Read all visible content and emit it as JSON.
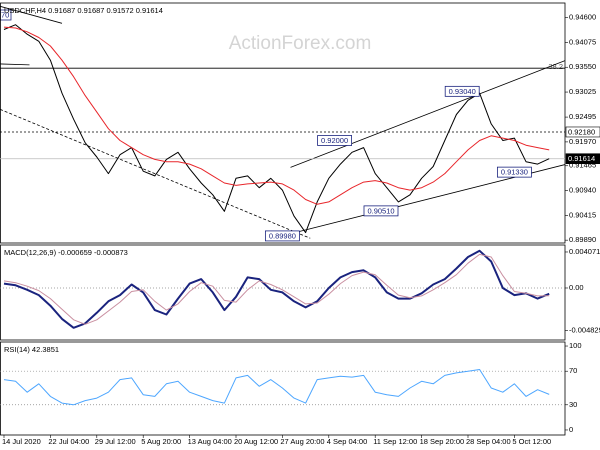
{
  "watermark": "ActionForex.com",
  "chart_data": [
    {
      "type": "line",
      "title": "USDCHF,H4  0.91687 0.91687 0.91572 0.91614",
      "notes": [
        "70",
        "38.2"
      ],
      "ylim": [
        0.8983,
        0.9491
      ],
      "yticks": [
        {
          "value": 0.946,
          "label": "0.94600"
        },
        {
          "value": 0.94075,
          "label": "0.94075"
        },
        {
          "value": 0.9355,
          "label": "0.93550"
        },
        {
          "value": 0.93025,
          "label": "0.93025"
        },
        {
          "value": 0.92495,
          "label": "0.92495"
        },
        {
          "value": 0.9197,
          "label": "0.91970"
        },
        {
          "value": 0.91465,
          "label": "0.91465"
        },
        {
          "value": 0.9094,
          "label": "0.90940"
        },
        {
          "value": 0.90415,
          "label": "0.90415"
        },
        {
          "value": 0.8989,
          "label": "0.89890"
        }
      ],
      "series": [
        {
          "color": "#000000",
          "values": [
            0.9435,
            0.9445,
            0.9425,
            0.941,
            0.937,
            0.93,
            0.9245,
            0.9195,
            0.9165,
            0.913,
            0.917,
            0.9185,
            0.9135,
            0.9125,
            0.916,
            0.9175,
            0.914,
            0.911,
            0.9085,
            0.905,
            0.912,
            0.9125,
            0.91,
            0.912,
            0.9095,
            0.904,
            0.9005,
            0.907,
            0.912,
            0.915,
            0.9175,
            0.9185,
            0.913,
            0.91,
            0.907,
            0.9085,
            0.912,
            0.9145,
            0.92,
            0.9255,
            0.9285,
            0.93,
            0.9235,
            0.92,
            0.9205,
            0.9155,
            0.915,
            0.91614
          ]
        },
        {
          "color": "#e8262b",
          "values": [
            0.944,
            0.9438,
            0.943,
            0.9418,
            0.94,
            0.937,
            0.9335,
            0.9295,
            0.926,
            0.9225,
            0.92,
            0.9185,
            0.917,
            0.916,
            0.9155,
            0.9155,
            0.915,
            0.914,
            0.9125,
            0.911,
            0.9105,
            0.9108,
            0.911,
            0.9112,
            0.9108,
            0.9095,
            0.9075,
            0.9065,
            0.907,
            0.9085,
            0.91,
            0.9112,
            0.9115,
            0.911,
            0.91,
            0.9095,
            0.91,
            0.9112,
            0.913,
            0.9155,
            0.918,
            0.92,
            0.921,
            0.9205,
            0.92,
            0.919,
            0.9185,
            0.918
          ]
        }
      ],
      "levels": [
        {
          "value": 0.9353,
          "style": "solid"
        },
        {
          "value": 0.9218,
          "label": "0.92180",
          "style": "dotted"
        },
        {
          "value": 0.91614,
          "label": "0.91614",
          "style": "current"
        }
      ],
      "trendlines": [
        {
          "x": [
            24.7,
            48.4
          ],
          "y": [
            0.9143,
            0.9369
          ],
          "style": "solid"
        },
        {
          "x": [
            22.5,
            48.4
          ],
          "y": [
            0.8989,
            0.9149
          ],
          "style": "solid"
        },
        {
          "x": [
            -0.34,
            26.4
          ],
          "y": [
            0.9266,
            0.8993
          ],
          "style": "dashed"
        },
        {
          "x": [
            -0.34,
            5.0
          ],
          "y": [
            0.9484,
            0.9448
          ],
          "style": "solid"
        },
        {
          "x": [
            -0.34,
            2.2
          ],
          "y": [
            0.9362,
            0.936
          ],
          "style": "solid"
        }
      ],
      "price_labels": [
        {
          "value": 0.92,
          "label": "0.92000",
          "x": 28.5
        },
        {
          "value": 0.9304,
          "label": "0.93040",
          "x": 39.5
        },
        {
          "value": 0.9051,
          "label": "0.90510",
          "x": 32.5
        },
        {
          "value": 0.9133,
          "label": "0.91330",
          "x": 44
        },
        {
          "value": 0.8998,
          "label": "0.89980",
          "x": 24
        }
      ]
    },
    {
      "type": "line",
      "title": "MACD(12,26,9) -0.000659 -0.000873",
      "ylim": [
        -0.00588,
        0.00486
      ],
      "yticks": [
        0.004071,
        {
          "value": 0,
          "label": "0.00"
        },
        -0.004829
      ],
      "dotted_levels": [
        0
      ],
      "series": [
        {
          "color": "#1a237e",
          "width": 2,
          "values": [
            0.0005,
            0.0003,
            -0.0002,
            -0.0008,
            -0.002,
            -0.0035,
            -0.0045,
            -0.004,
            -0.0028,
            -0.0015,
            -0.0008,
            0.0004,
            -0.0005,
            -0.0025,
            -0.003,
            -0.0012,
            0.0005,
            0.001,
            -0.0005,
            -0.0025,
            -0.001,
            0.0012,
            0.001,
            -0.0002,
            -0.0005,
            -0.0015,
            -0.0022,
            -0.0015,
            0,
            0.0012,
            0.0018,
            0.002,
            0.0012,
            -0.0005,
            -0.0012,
            -0.0012,
            -0.0006,
            0.0004,
            0.001,
            0.0022,
            0.0035,
            0.0042,
            0.003,
            0,
            -0.0008,
            -0.0006,
            -0.0012,
            -0.000659
          ]
        },
        {
          "color": "#c98fa0",
          "width": 1,
          "values": [
            0.0008,
            0.0006,
            0.0002,
            -0.0003,
            -0.0012,
            -0.0024,
            -0.0036,
            -0.0041,
            -0.0036,
            -0.0026,
            -0.0016,
            -0.0004,
            -0.0002,
            -0.0015,
            -0.0025,
            -0.0018,
            -0.0004,
            0.0006,
            0.0002,
            -0.0014,
            -0.0016,
            -0.0002,
            0.0008,
            0.0004,
            -0.0002,
            -0.001,
            -0.0018,
            -0.0017,
            -0.0007,
            0.0005,
            0.0014,
            0.0018,
            0.0015,
            0.0003,
            -0.0008,
            -0.0011,
            -0.0009,
            -0.0002,
            0.0006,
            0.0015,
            0.0028,
            0.0038,
            0.0035,
            0.0014,
            -0.0004,
            -0.0006,
            -0.0009,
            -0.000873
          ]
        }
      ]
    },
    {
      "type": "line",
      "title": "RSI(14) 42.3851",
      "ylim": [
        -6,
        104.8
      ],
      "yticks": [
        100,
        70,
        30,
        0
      ],
      "dotted_levels": [
        70,
        30
      ],
      "series": [
        {
          "color": "#4da6ff",
          "width": 1,
          "values": [
            60,
            58,
            45,
            55,
            40,
            32,
            30,
            35,
            38,
            45,
            60,
            62,
            42,
            40,
            55,
            58,
            45,
            40,
            35,
            32,
            62,
            65,
            52,
            60,
            50,
            38,
            32,
            60,
            62,
            64,
            63,
            65,
            45,
            42,
            40,
            50,
            58,
            55,
            65,
            68,
            70,
            72,
            50,
            45,
            55,
            40,
            48,
            42.3851
          ]
        }
      ],
      "categories": [
        "14 Jul 2020",
        null,
        null,
        null,
        "22 Jul 04:00",
        null,
        null,
        null,
        "29 Jul 12:00",
        null,
        null,
        null,
        "5 Aug 20:00",
        null,
        null,
        null,
        "13 Aug 04:00",
        null,
        null,
        null,
        "20 Aug 12:00",
        null,
        null,
        null,
        "27 Aug 20:00",
        null,
        null,
        null,
        "4 Sep 04:00",
        null,
        null,
        null,
        "11 Sep 12:00",
        null,
        null,
        null,
        "18 Sep 20:00",
        null,
        null,
        null,
        "28 Sep 04:00",
        null,
        null,
        null,
        "5 Oct 12:00",
        null,
        null,
        null
      ]
    }
  ]
}
